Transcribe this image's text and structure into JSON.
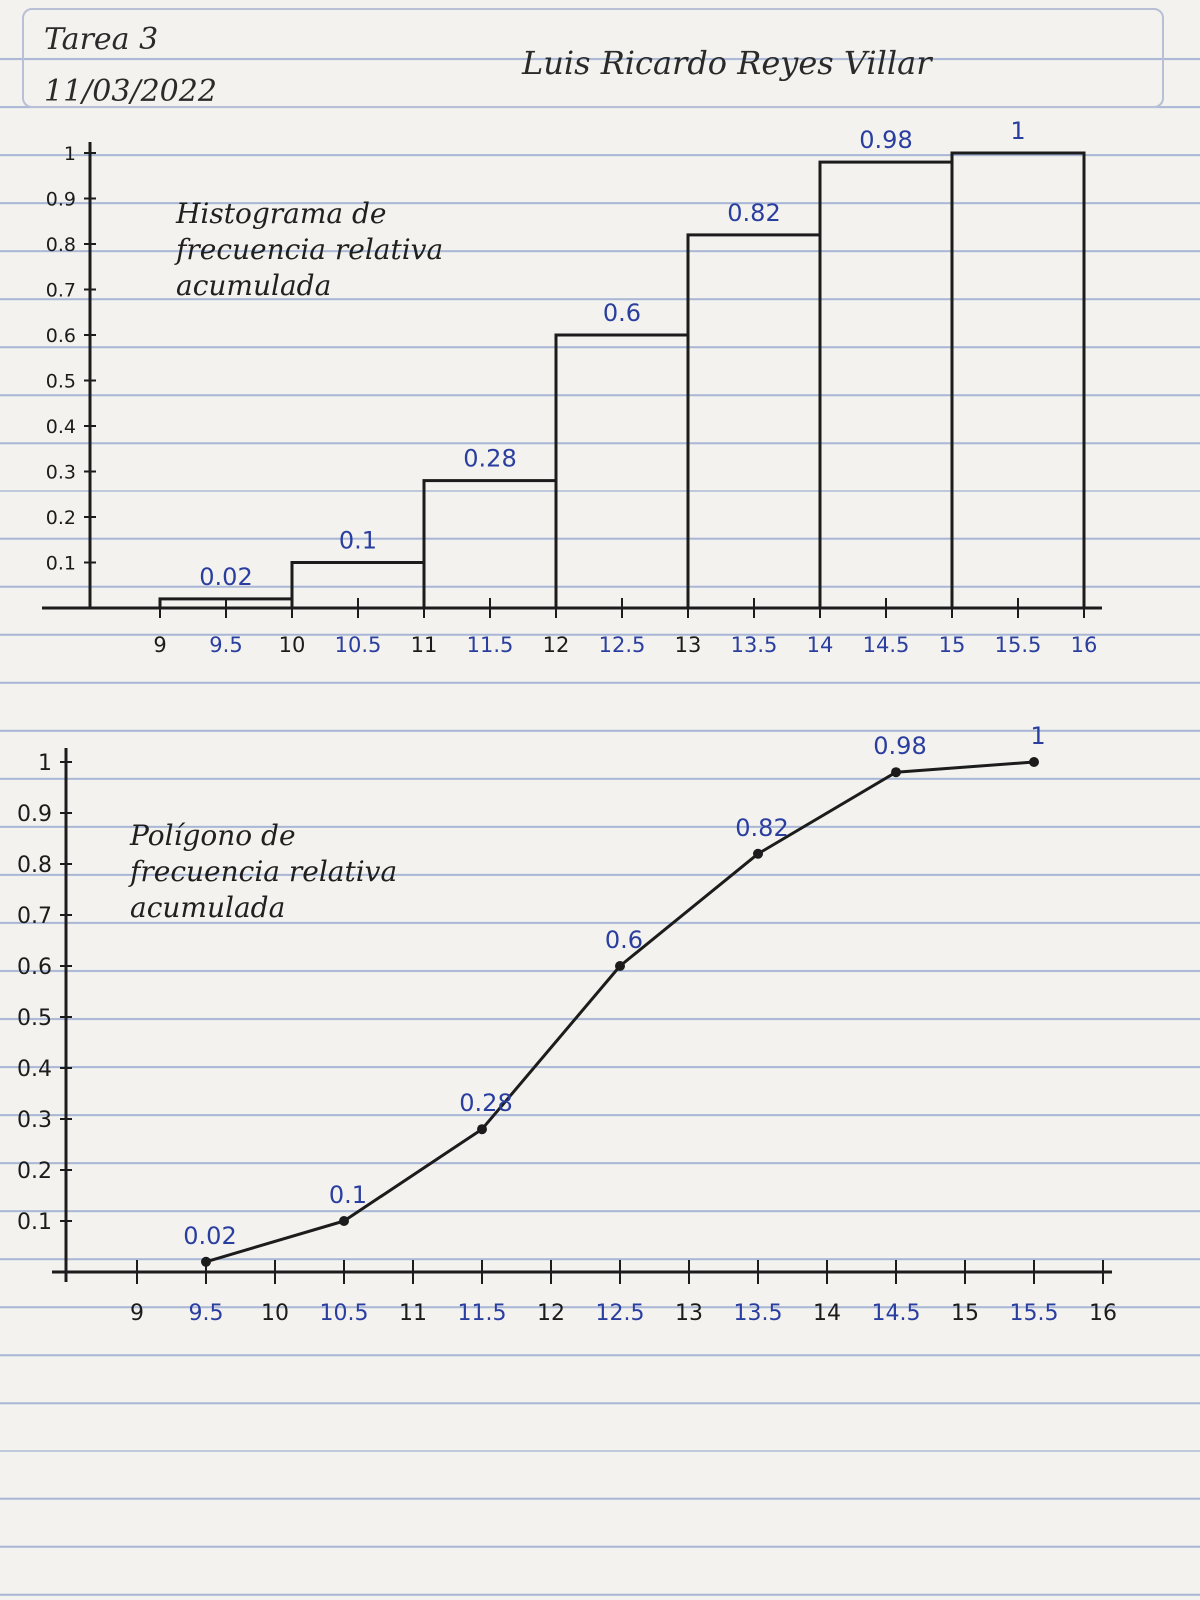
{
  "header": {
    "title": "Tarea 3",
    "date": "11/03/2022",
    "author": "Luis Ricardo Reyes Villar"
  },
  "colors": {
    "ink": "#1c1c1c",
    "blue_ink": "#2a3ea0",
    "ruled_lines": "#a9b7d6"
  },
  "chart_data": [
    {
      "type": "bar",
      "title_lines": [
        "Histograma de",
        "frecuencia relativa",
        "acumulada"
      ],
      "x_ticks": [
        "9",
        "9.5",
        "10",
        "10.5",
        "11",
        "11.5",
        "12",
        "12.5",
        "13",
        "13.5",
        "14",
        "14.5",
        "15",
        "15.5",
        "16"
      ],
      "y_ticks": [
        "0.1",
        "0.2",
        "0.3",
        "0.4",
        "0.5",
        "0.6",
        "0.7",
        "0.8",
        "0.9",
        "1"
      ],
      "bins": [
        [
          9,
          10
        ],
        [
          10,
          11
        ],
        [
          11,
          12
        ],
        [
          12,
          13
        ],
        [
          13,
          14
        ],
        [
          14,
          15
        ],
        [
          15,
          16
        ]
      ],
      "values": [
        0.02,
        0.1,
        0.28,
        0.6,
        0.82,
        0.98,
        1
      ],
      "data_labels": [
        "0.02",
        "0.1",
        "0.28",
        "0.6",
        "0.82",
        "0.98",
        "1"
      ],
      "xlim": [
        9,
        16
      ],
      "ylim": [
        0,
        1
      ]
    },
    {
      "type": "line",
      "title_lines": [
        "Polígono de",
        "frecuencia relativa",
        "acumulada"
      ],
      "x_ticks": [
        "9",
        "9.5",
        "10",
        "10.5",
        "11",
        "11.5",
        "12",
        "12.5",
        "13",
        "13.5",
        "14",
        "14.5",
        "15",
        "15.5",
        "16"
      ],
      "y_ticks": [
        "0.1",
        "0.2",
        "0.3",
        "0.4",
        "0.5",
        "0.6",
        "0.7",
        "0.8",
        "0.9",
        "1"
      ],
      "x": [
        9.5,
        10.5,
        11.5,
        12.5,
        13.5,
        14.5,
        15.5
      ],
      "values": [
        0.02,
        0.1,
        0.28,
        0.6,
        0.82,
        0.98,
        1
      ],
      "data_labels": [
        "0.02",
        "0.1",
        "0.28",
        "0.6",
        "0.82",
        "0.98",
        "1"
      ],
      "xlim": [
        9,
        16
      ],
      "ylim": [
        0,
        1
      ]
    }
  ]
}
